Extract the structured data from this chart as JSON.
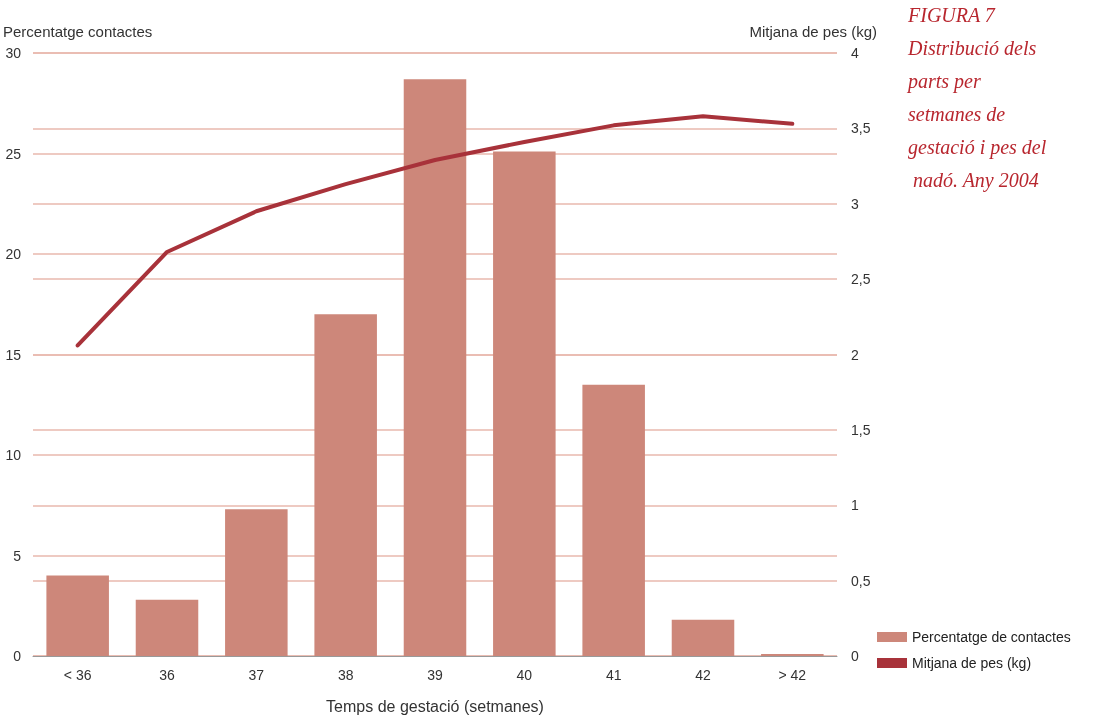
{
  "chart_data": {
    "type": "bar",
    "title": "FIGURA 7",
    "subtitle": "Distribució dels parts per setmanes de gestació i pes del nadó. Any 2004",
    "xlabel": "Temps de gestació (setmanes)",
    "ylabel": "Percentatge contactes",
    "y2label": "Mitjana de pes (kg)",
    "categories": [
      "< 36",
      "36",
      "37",
      "38",
      "39",
      "40",
      "41",
      "42",
      "> 42"
    ],
    "series": [
      {
        "name": "Percentatge de contactes",
        "color": "#cd877a",
        "values": [
          4.0,
          2.8,
          7.3,
          17.0,
          28.7,
          25.1,
          13.5,
          1.8,
          0.1
        ]
      },
      {
        "name": "Mitjana de pes (kg)",
        "type": "line",
        "axis": "y2",
        "color": "#a8323a",
        "marker": "none",
        "values": [
          2.06,
          2.68,
          2.95,
          3.13,
          3.29,
          3.41,
          3.52,
          3.58,
          3.53
        ]
      }
    ],
    "ylim": [
      0,
      30
    ],
    "yticks": [
      0,
      5,
      10,
      15,
      20,
      25,
      30
    ],
    "y2lim": [
      0,
      4
    ],
    "y2ticks": [
      0,
      {
        "value": 0.5,
        "label": "0,5"
      },
      1,
      {
        "value": 1.5,
        "label": "1,5"
      },
      2,
      {
        "value": 2.5,
        "label": "2,5"
      },
      3,
      {
        "value": 3.5,
        "label": "3,5"
      },
      4
    ],
    "grid": true,
    "legend": "bottom right"
  }
}
